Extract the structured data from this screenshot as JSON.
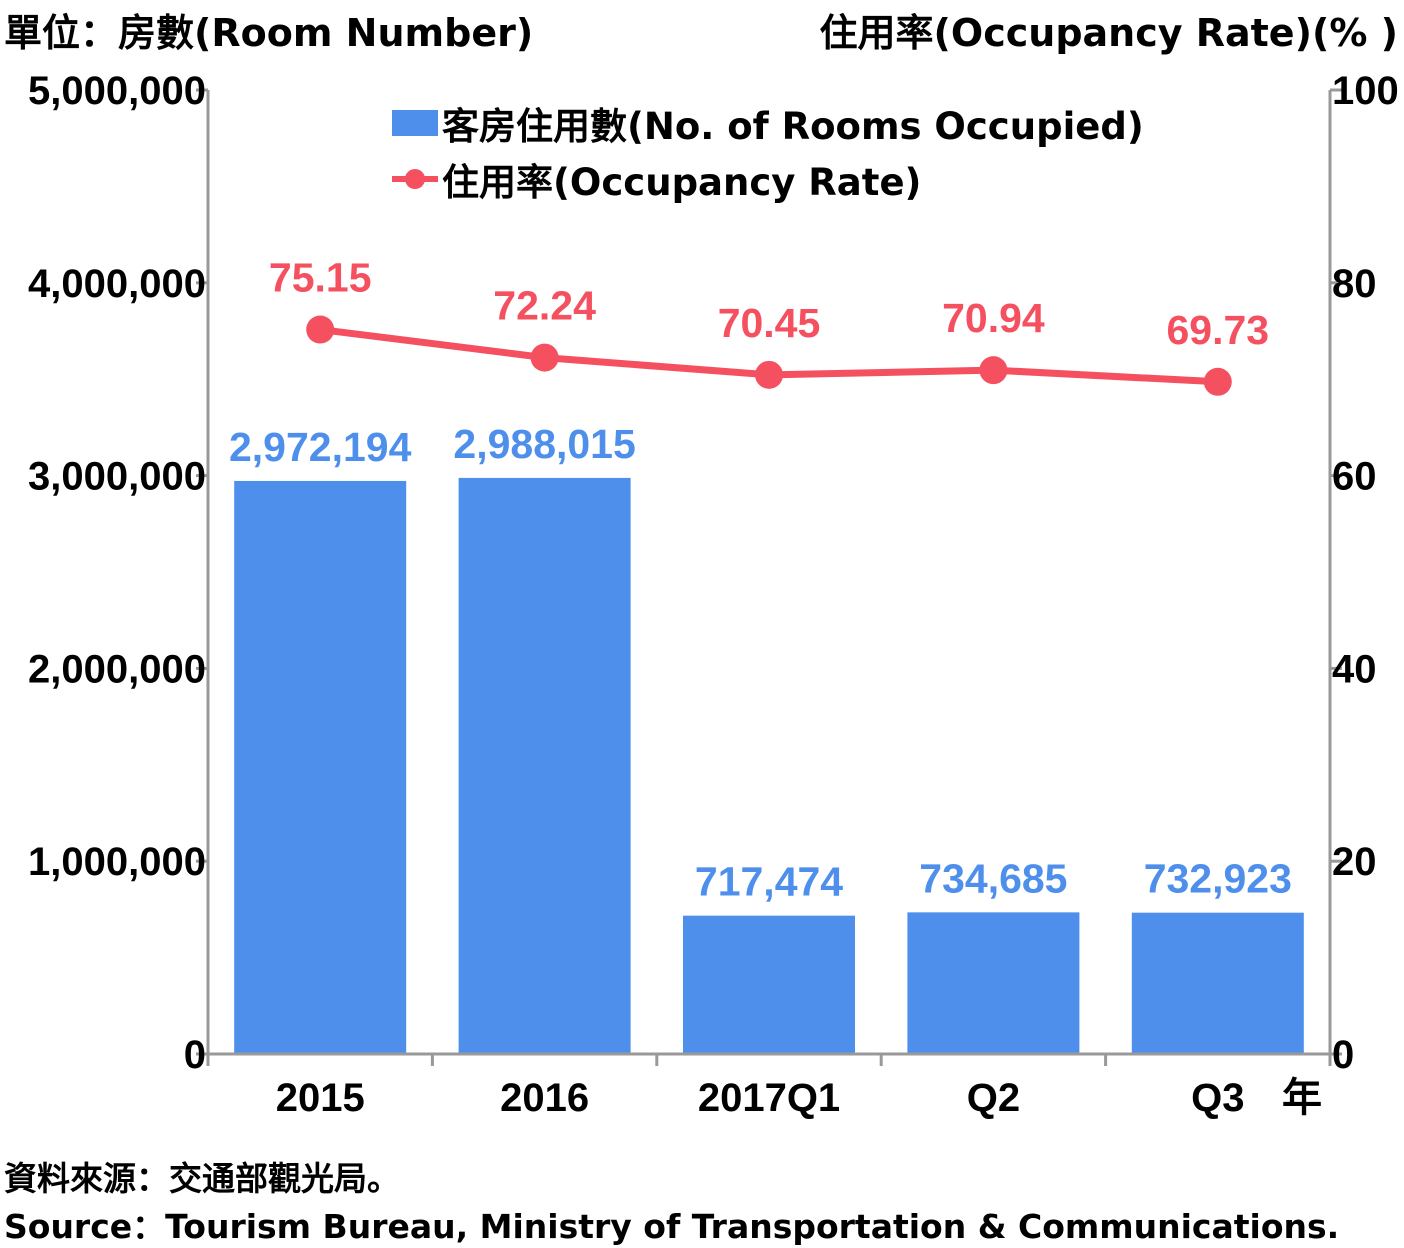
{
  "header": {
    "left_unit": "單位：房數(Room Number)",
    "right_unit": "住用率(Occupancy Rate)(% )"
  },
  "legend": {
    "bar_label": "客房住用數(No. of Rooms Occupied)",
    "line_label": "住用率(Occupancy Rate)"
  },
  "source": {
    "zh": "資料來源：交通部觀光局。",
    "en": "Source：Tourism Bureau, Ministry of Transportation & Communications."
  },
  "chart_data": {
    "type": "bar",
    "categories": [
      "2015",
      "2016",
      "2017Q1",
      "Q2",
      "Q3"
    ],
    "x_unit_label": "年",
    "series": [
      {
        "name": "客房住用數(No. of Rooms Occupied)",
        "type": "bar",
        "axis": "left",
        "values": [
          2972194,
          2988015,
          717474,
          734685,
          732923
        ],
        "data_labels": [
          "2,972,194",
          "2,988,015",
          "717,474",
          "734,685",
          "732,923"
        ],
        "color": "#4f8fec"
      },
      {
        "name": "住用率(Occupancy Rate)",
        "type": "line",
        "axis": "right",
        "values": [
          75.15,
          72.24,
          70.45,
          70.94,
          69.73
        ],
        "data_labels": [
          "75.15",
          "72.24",
          "70.45",
          "70.94",
          "69.73"
        ],
        "color": "#f5505f"
      }
    ],
    "left_axis": {
      "ylim": [
        0,
        5000000
      ],
      "ticks": [
        0,
        1000000,
        2000000,
        3000000,
        4000000,
        5000000
      ],
      "tick_labels": [
        "0",
        "1,000,000",
        "2,000,000",
        "3,000,000",
        "4,000,000",
        "5,000,000"
      ]
    },
    "right_axis": {
      "ylim": [
        0,
        100
      ],
      "ticks": [
        0,
        20,
        40,
        60,
        80,
        100
      ],
      "tick_labels": [
        "0",
        "20",
        "40",
        "60",
        "80",
        "100"
      ]
    },
    "grid": false,
    "legend_position": "top-center",
    "bar_label_color": "#4f8fec",
    "line_label_color": "#f5505f",
    "axis_color": "#999999"
  }
}
